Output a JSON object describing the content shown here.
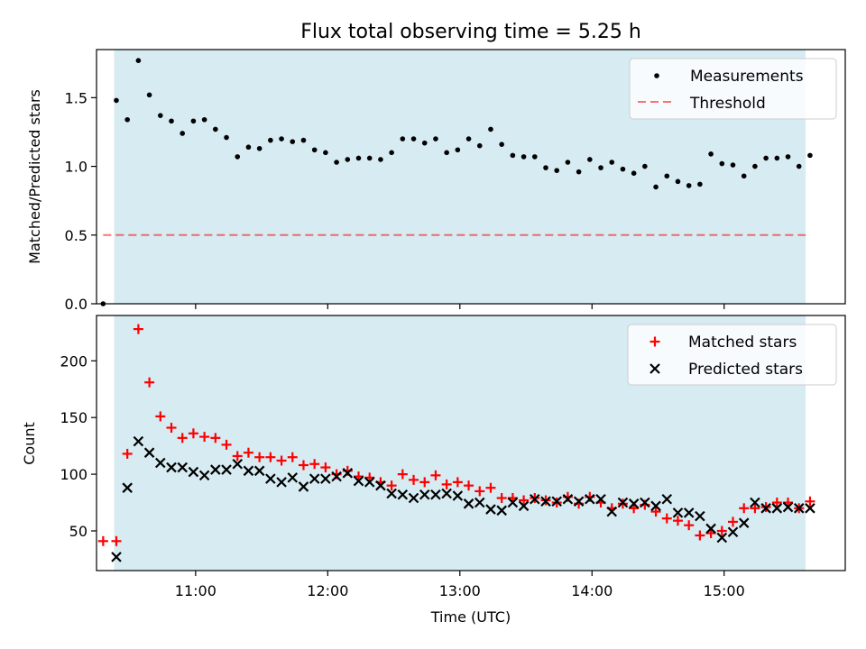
{
  "colors": {
    "shade": "#add8e6",
    "measure": "#000000",
    "threshold": "#ff0000",
    "matched": "#ff0000",
    "predicted": "#000000"
  },
  "chart_data": [
    {
      "type": "scatter",
      "title": "Flux total observing time = 5.25 h",
      "xlabel": "",
      "ylabel": "Matched/Predicted stars",
      "xlim": [
        "10:15",
        "15:55"
      ],
      "ylim": [
        0,
        1.85
      ],
      "yticks": [
        "0.0",
        "0.5",
        "1.0",
        "1.5"
      ],
      "shaded_span": [
        "10:23",
        "15:37"
      ],
      "legend": {
        "position": "top-right",
        "entries": [
          "Measurements",
          "Threshold"
        ]
      },
      "threshold": {
        "name": "Threshold",
        "y": 0.5,
        "x": [
          "10:18",
          "15:37"
        ]
      },
      "series": [
        {
          "name": "Measurements",
          "x": [
            "10:18",
            "10:24",
            "10:29",
            "10:34",
            "10:39",
            "10:44",
            "10:49",
            "10:54",
            "10:59",
            "11:04",
            "11:09",
            "11:14",
            "11:19",
            "11:24",
            "11:29",
            "11:34",
            "11:39",
            "11:44",
            "11:49",
            "11:54",
            "11:59",
            "12:04",
            "12:09",
            "12:14",
            "12:19",
            "12:24",
            "12:29",
            "12:34",
            "12:39",
            "12:44",
            "12:49",
            "12:54",
            "12:59",
            "13:04",
            "13:09",
            "13:14",
            "13:19",
            "13:24",
            "13:29",
            "13:34",
            "13:39",
            "13:44",
            "13:49",
            "13:54",
            "13:59",
            "14:04",
            "14:09",
            "14:14",
            "14:19",
            "14:24",
            "14:29",
            "14:34",
            "14:39",
            "14:44",
            "14:49",
            "14:54",
            "14:59",
            "15:04",
            "15:09",
            "15:14",
            "15:19",
            "15:24",
            "15:29",
            "15:34",
            "15:39"
          ],
          "y": [
            0.0,
            1.48,
            1.34,
            1.77,
            1.52,
            1.37,
            1.33,
            1.24,
            1.33,
            1.34,
            1.27,
            1.21,
            1.07,
            1.14,
            1.13,
            1.19,
            1.2,
            1.18,
            1.19,
            1.12,
            1.1,
            1.03,
            1.05,
            1.06,
            1.06,
            1.05,
            1.1,
            1.2,
            1.2,
            1.17,
            1.2,
            1.1,
            1.12,
            1.2,
            1.15,
            1.27,
            1.16,
            1.08,
            1.07,
            1.07,
            0.99,
            0.97,
            1.03,
            0.96,
            1.05,
            0.99,
            1.03,
            0.98,
            0.95,
            1.0,
            0.85,
            0.93,
            0.89,
            0.86,
            0.87,
            1.09,
            1.02,
            1.01,
            0.93,
            1.0,
            1.06,
            1.06,
            1.07,
            1.0,
            1.08
          ]
        }
      ]
    },
    {
      "type": "scatter",
      "title": "",
      "xlabel": "Time (UTC)",
      "ylabel": "Count",
      "xlim": [
        "10:15",
        "15:55"
      ],
      "ylim": [
        15,
        240
      ],
      "yticks": [
        "50",
        "100",
        "150",
        "200"
      ],
      "xticks": [
        "11:00",
        "12:00",
        "13:00",
        "14:00",
        "15:00"
      ],
      "shaded_span": [
        "10:23",
        "15:37"
      ],
      "legend": {
        "position": "top-right",
        "entries": [
          "Matched stars",
          "Predicted stars"
        ]
      },
      "series": [
        {
          "name": "Matched stars",
          "x": [
            "10:18",
            "10:24",
            "10:29",
            "10:34",
            "10:39",
            "10:44",
            "10:49",
            "10:54",
            "10:59",
            "11:04",
            "11:09",
            "11:14",
            "11:19",
            "11:24",
            "11:29",
            "11:34",
            "11:39",
            "11:44",
            "11:49",
            "11:54",
            "11:59",
            "12:04",
            "12:09",
            "12:14",
            "12:19",
            "12:24",
            "12:29",
            "12:34",
            "12:39",
            "12:44",
            "12:49",
            "12:54",
            "12:59",
            "13:04",
            "13:09",
            "13:14",
            "13:19",
            "13:24",
            "13:29",
            "13:34",
            "13:39",
            "13:44",
            "13:49",
            "13:54",
            "13:59",
            "14:04",
            "14:09",
            "14:14",
            "14:19",
            "14:24",
            "14:29",
            "14:34",
            "14:39",
            "14:44",
            "14:49",
            "14:54",
            "14:59",
            "15:04",
            "15:09",
            "15:14",
            "15:19",
            "15:24",
            "15:29",
            "15:34",
            "15:39"
          ],
          "y": [
            41,
            41,
            118,
            228,
            181,
            151,
            141,
            132,
            136,
            133,
            132,
            126,
            116,
            119,
            115,
            115,
            112,
            115,
            108,
            109,
            106,
            100,
            103,
            98,
            97,
            93,
            90,
            100,
            95,
            93,
            99,
            91,
            93,
            90,
            85,
            88,
            79,
            79,
            77,
            79,
            77,
            75,
            80,
            74,
            80,
            75,
            70,
            74,
            70,
            73,
            67,
            61,
            59,
            55,
            46,
            48,
            50,
            58,
            70,
            70,
            71,
            75,
            75,
            70,
            76
          ]
        },
        {
          "name": "Predicted stars",
          "x": [
            "10:24",
            "10:29",
            "10:34",
            "10:39",
            "10:44",
            "10:49",
            "10:54",
            "10:59",
            "11:04",
            "11:09",
            "11:14",
            "11:19",
            "11:24",
            "11:29",
            "11:34",
            "11:39",
            "11:44",
            "11:49",
            "11:54",
            "11:59",
            "12:04",
            "12:09",
            "12:14",
            "12:19",
            "12:24",
            "12:29",
            "12:34",
            "12:39",
            "12:44",
            "12:49",
            "12:54",
            "12:59",
            "13:04",
            "13:09",
            "13:14",
            "13:19",
            "13:24",
            "13:29",
            "13:34",
            "13:39",
            "13:44",
            "13:49",
            "13:54",
            "13:59",
            "14:04",
            "14:09",
            "14:14",
            "14:19",
            "14:24",
            "14:29",
            "14:34",
            "14:39",
            "14:44",
            "14:49",
            "14:54",
            "14:59",
            "15:04",
            "15:09",
            "15:14",
            "15:19",
            "15:24",
            "15:29",
            "15:34",
            "15:39"
          ],
          "y": [
            27,
            88,
            129,
            119,
            110,
            106,
            106,
            102,
            99,
            104,
            104,
            109,
            103,
            103,
            96,
            93,
            97,
            89,
            96,
            96,
            98,
            101,
            94,
            93,
            90,
            83,
            82,
            79,
            82,
            82,
            83,
            81,
            74,
            75,
            69,
            68,
            75,
            72,
            78,
            76,
            76,
            78,
            76,
            78,
            78,
            67,
            75,
            74,
            75,
            72,
            78,
            66,
            66,
            63,
            52,
            44,
            49,
            57,
            75,
            70,
            70,
            71,
            70,
            70
          ]
        }
      ]
    }
  ]
}
